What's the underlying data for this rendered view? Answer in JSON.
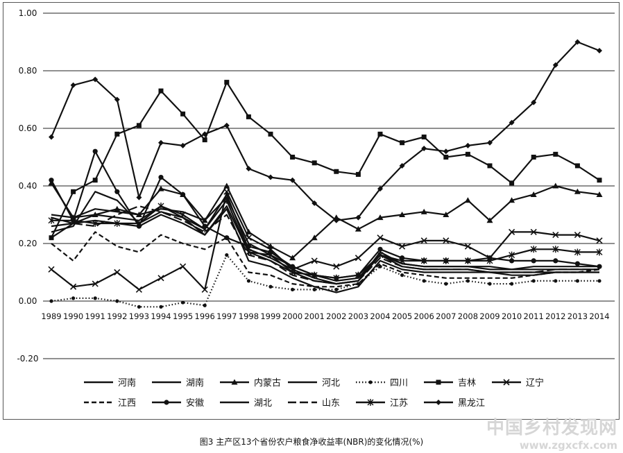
{
  "chart_data": {
    "type": "line",
    "title": "",
    "xlabel": "",
    "ylabel": "",
    "ylim": [
      -0.2,
      1.0
    ],
    "ytick_labels": [
      "-0.20",
      "0.00",
      "0.20",
      "0.40",
      "0.60",
      "0.80",
      "1.00"
    ],
    "yticks": [
      -0.2,
      0,
      0.2,
      0.4,
      0.6,
      0.8,
      1.0
    ],
    "grid": "horizontal",
    "legend_position": "bottom",
    "categories": [
      "1989",
      "1990",
      "1991",
      "1992",
      "1993",
      "1994",
      "1995",
      "1996",
      "1997",
      "1998",
      "1999",
      "2000",
      "2001",
      "2002",
      "2003",
      "2004",
      "2005",
      "2006",
      "2007",
      "2008",
      "2009",
      "2010",
      "2011",
      "2012",
      "2013",
      "2014"
    ],
    "series": [
      {
        "name": "河南",
        "marker": "none",
        "dash": "solid",
        "values": [
          0.26,
          0.27,
          0.3,
          0.29,
          0.28,
          0.33,
          0.29,
          0.25,
          0.37,
          0.18,
          0.15,
          0.11,
          0.08,
          0.06,
          0.07,
          0.17,
          0.13,
          0.12,
          0.12,
          0.12,
          0.11,
          0.11,
          0.11,
          0.11,
          0.11,
          0.11
        ]
      },
      {
        "name": "湖南",
        "marker": "none",
        "dash": "solid",
        "values": [
          0.22,
          0.27,
          0.28,
          0.27,
          0.26,
          0.3,
          0.27,
          0.23,
          0.33,
          0.17,
          0.14,
          0.1,
          0.07,
          0.06,
          0.07,
          0.16,
          0.12,
          0.11,
          0.11,
          0.11,
          0.1,
          0.1,
          0.1,
          0.1,
          0.1,
          0.1
        ]
      },
      {
        "name": "内蒙古",
        "marker": "triangle",
        "dash": "solid",
        "values": [
          0.41,
          0.29,
          0.3,
          0.32,
          0.3,
          0.39,
          0.37,
          0.28,
          0.4,
          0.24,
          0.19,
          0.15,
          0.22,
          0.29,
          0.25,
          0.29,
          0.3,
          0.31,
          0.3,
          0.35,
          0.28,
          0.35,
          0.37,
          0.4,
          0.38,
          0.37
        ]
      },
      {
        "name": "河北",
        "marker": "none",
        "dash": "solid",
        "values": [
          0.24,
          0.26,
          0.38,
          0.35,
          0.27,
          0.31,
          0.29,
          0.23,
          0.32,
          0.14,
          0.12,
          0.08,
          0.05,
          0.03,
          0.05,
          0.14,
          0.11,
          0.1,
          0.1,
          0.1,
          0.1,
          0.09,
          0.09,
          0.1,
          0.1,
          0.1
        ]
      },
      {
        "name": "四川",
        "marker": "dot",
        "dash": "dotted",
        "values": [
          0.0,
          0.01,
          0.01,
          0.0,
          -0.02,
          -0.02,
          -0.005,
          -0.015,
          0.16,
          0.07,
          0.05,
          0.04,
          0.04,
          0.04,
          0.06,
          0.12,
          0.09,
          0.07,
          0.06,
          0.07,
          0.06,
          0.06,
          0.07,
          0.07,
          0.07,
          0.07
        ]
      },
      {
        "name": "吉林",
        "marker": "square",
        "dash": "solid",
        "values": [
          0.22,
          0.38,
          0.42,
          0.58,
          0.61,
          0.73,
          0.65,
          0.56,
          0.76,
          0.64,
          0.58,
          0.5,
          0.48,
          0.45,
          0.44,
          0.58,
          0.55,
          0.57,
          0.5,
          0.51,
          0.47,
          0.41,
          0.5,
          0.51,
          0.47,
          0.42
        ]
      },
      {
        "name": "辽宁",
        "marker": "x",
        "dash": "solid",
        "values": [
          0.11,
          0.05,
          0.06,
          0.1,
          0.04,
          0.08,
          0.12,
          0.04,
          0.38,
          0.22,
          0.18,
          0.11,
          0.14,
          0.12,
          0.15,
          0.22,
          0.19,
          0.21,
          0.21,
          0.19,
          0.15,
          0.24,
          0.24,
          0.23,
          0.23,
          0.21
        ]
      },
      {
        "name": "江西",
        "marker": "none",
        "dash": "dashed",
        "values": [
          0.2,
          0.14,
          0.24,
          0.19,
          0.17,
          0.23,
          0.2,
          0.18,
          0.22,
          0.1,
          0.09,
          0.06,
          0.05,
          0.05,
          0.06,
          0.13,
          0.1,
          0.09,
          0.08,
          0.08,
          0.08,
          0.08,
          0.09,
          0.1,
          0.1,
          0.11
        ]
      },
      {
        "name": "安徽",
        "marker": "circle",
        "dash": "solid",
        "values": [
          0.42,
          0.28,
          0.52,
          0.38,
          0.26,
          0.43,
          0.37,
          0.26,
          0.22,
          0.19,
          0.17,
          0.12,
          0.09,
          0.08,
          0.09,
          0.18,
          0.15,
          0.14,
          0.14,
          0.14,
          0.15,
          0.14,
          0.14,
          0.14,
          0.13,
          0.12
        ]
      },
      {
        "name": "湖北",
        "marker": "none",
        "dash": "solid",
        "values": [
          0.3,
          0.29,
          0.32,
          0.31,
          0.3,
          0.32,
          0.31,
          0.28,
          0.36,
          0.2,
          0.16,
          0.12,
          0.09,
          0.07,
          0.08,
          0.16,
          0.13,
          0.12,
          0.12,
          0.12,
          0.12,
          0.11,
          0.12,
          0.12,
          0.12,
          0.12
        ]
      },
      {
        "name": "山东",
        "marker": "none",
        "dash": "long-dash",
        "values": [
          0.29,
          0.27,
          0.26,
          0.3,
          0.33,
          0.31,
          0.28,
          0.24,
          0.3,
          0.16,
          0.14,
          0.09,
          0.07,
          0.06,
          0.07,
          0.15,
          0.12,
          0.11,
          0.11,
          0.11,
          0.1,
          0.1,
          0.1,
          0.11,
          0.11,
          0.11
        ]
      },
      {
        "name": "江苏",
        "marker": "star",
        "dash": "solid",
        "values": [
          0.28,
          0.28,
          0.27,
          0.27,
          0.27,
          0.33,
          0.3,
          0.25,
          0.35,
          0.17,
          0.16,
          0.1,
          0.09,
          0.08,
          0.09,
          0.16,
          0.14,
          0.14,
          0.14,
          0.14,
          0.14,
          0.16,
          0.18,
          0.18,
          0.17,
          0.17
        ]
      },
      {
        "name": "黑龙江",
        "marker": "diamond",
        "dash": "solid",
        "values": [
          0.57,
          0.75,
          0.77,
          0.7,
          0.36,
          0.55,
          0.54,
          0.58,
          0.61,
          0.46,
          0.43,
          0.42,
          0.34,
          0.28,
          0.29,
          0.39,
          0.47,
          0.53,
          0.52,
          0.54,
          0.55,
          0.62,
          0.69,
          0.82,
          0.9,
          0.87
        ]
      }
    ]
  },
  "caption": "图3   主产区13个省份农户粮食净收益率(NBR)的变化情况(%)",
  "watermark": {
    "line1": "中国乡村发现网",
    "line2": "www.zgxcfx.com",
    "color": "#d6d6d6"
  }
}
